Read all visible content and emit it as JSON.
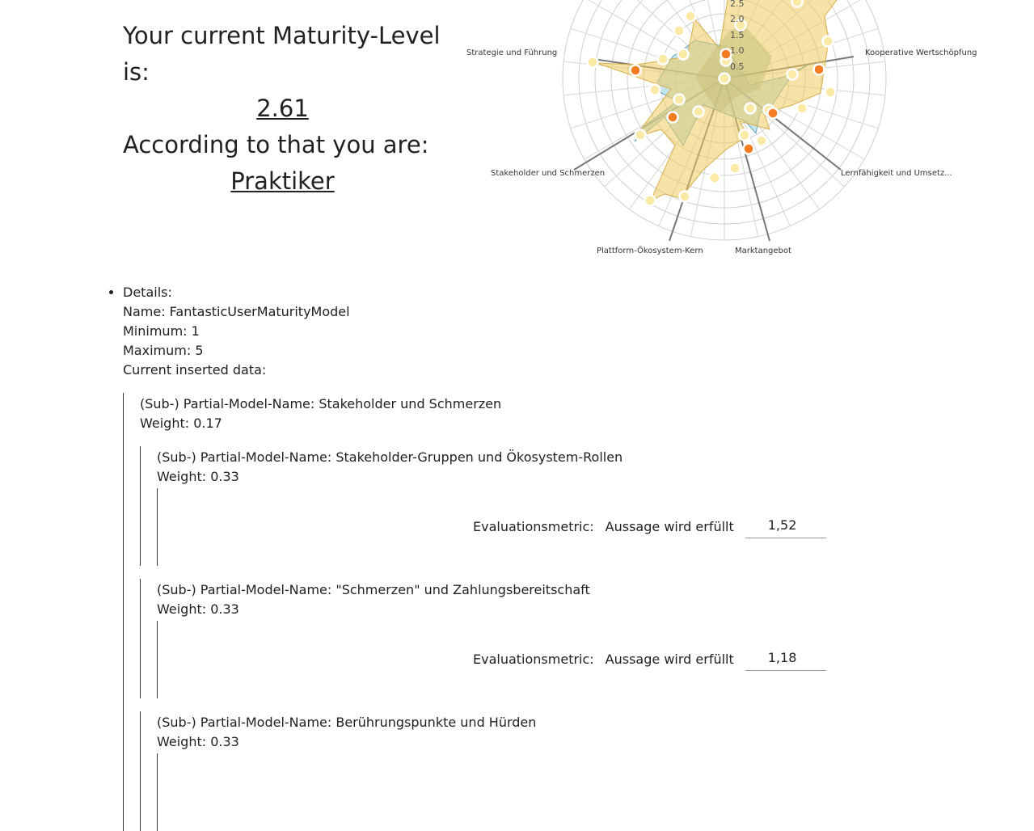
{
  "summary": {
    "line1": "Your current Maturity-Level is:",
    "level": "2.61",
    "line2": "According to that you are:",
    "type": "Praktiker"
  },
  "radar": {
    "axes": [
      "Strategie und Führung",
      "Kooperative Wertschöpfung",
      "Lernfähigkeit und Umsetz...",
      "Marktangebot",
      "Plattform-Ökosystem-Kern",
      "Stakeholder und Schmerzen"
    ],
    "ticks": [
      "2.5",
      "2.0",
      "1.5",
      "1.0",
      "0.5"
    ],
    "colors": {
      "blue": "#9fd0df",
      "yellow": "#f5d67a",
      "orange": "#f57c20",
      "point": "#fbe9a6"
    }
  },
  "details": {
    "heading": "Details:",
    "name": "Name: FantasticUserMaturityModel",
    "minimum": "Minimum: 1",
    "maximum": "Maximum: 5",
    "current": "Current inserted data:"
  },
  "model": {
    "name": "(Sub-) Partial-Model-Name: Stakeholder und Schmerzen",
    "weight": "Weight: 0.17",
    "subs": [
      {
        "name": "(Sub-) Partial-Model-Name: Stakeholder-Gruppen und Ökosystem-Rollen",
        "weight": "Weight: 0.33",
        "metric_label": "Evaluationsmetric:",
        "statement": "Aussage wird erfüllt",
        "value": "1,52"
      },
      {
        "name": "(Sub-) Partial-Model-Name: \"Schmerzen\" und Zahlungsbereitschaft",
        "weight": "Weight: 0.33",
        "metric_label": "Evaluationsmetric:",
        "statement": "Aussage wird erfüllt",
        "value": "1,18"
      },
      {
        "name": "(Sub-) Partial-Model-Name: Berührungspunkte und Hürden",
        "weight": "Weight: 0.33"
      }
    ]
  }
}
